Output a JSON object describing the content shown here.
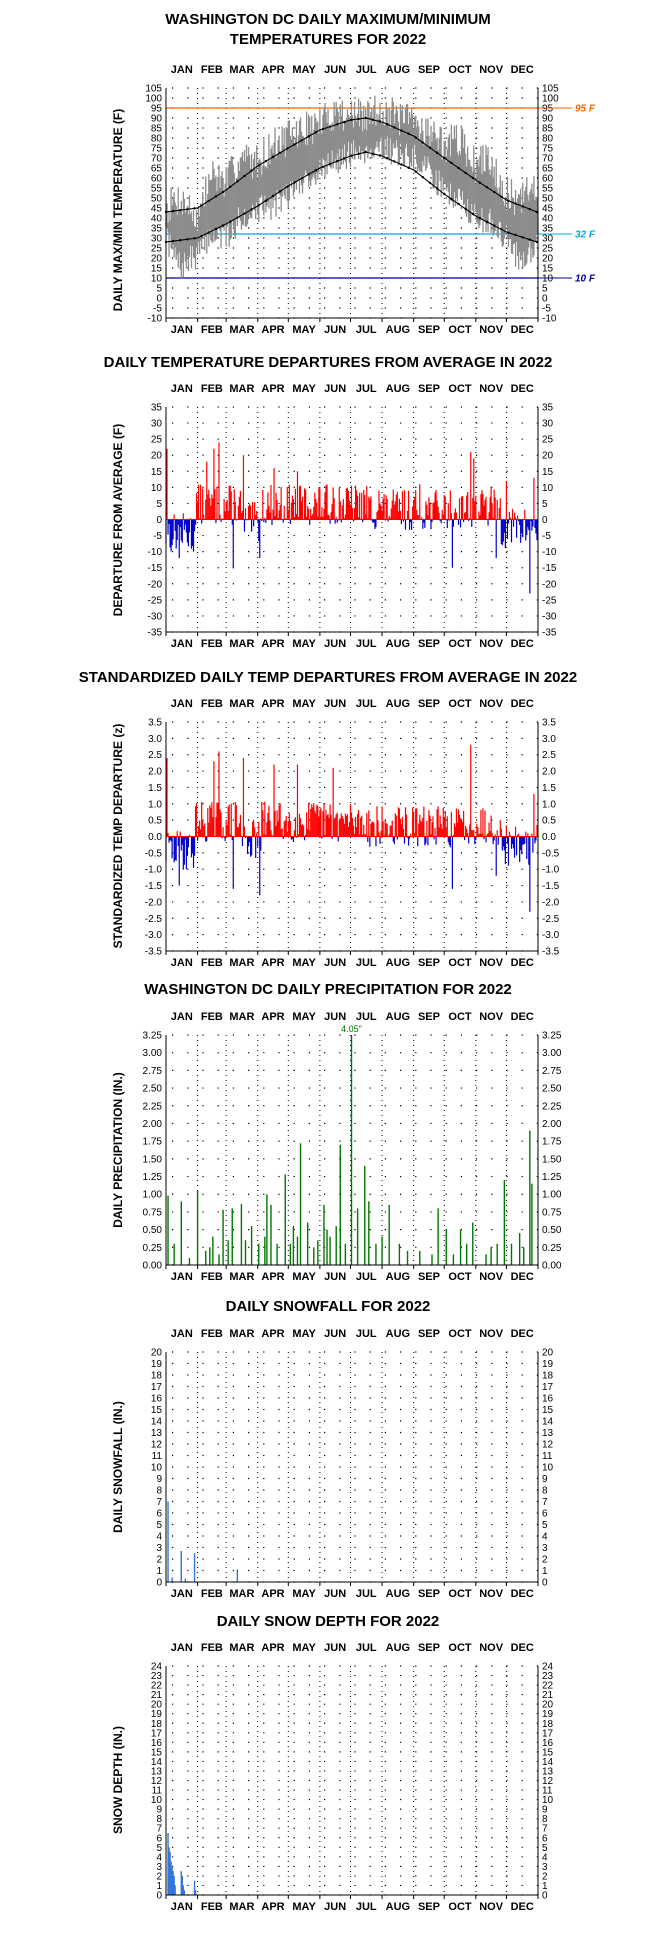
{
  "chart_data": [
    {
      "id": "temp",
      "type": "line",
      "title": [
        "WASHINGTON DC DAILY MAXIMUM/MINIMUM",
        "TEMPERATURES FOR 2022"
      ],
      "ylabel": "DAILY MAX/MIN TEMPERATURE (F)",
      "months": [
        "JAN",
        "FEB",
        "MAR",
        "APR",
        "MAY",
        "JUN",
        "JUL",
        "AUG",
        "SEP",
        "OCT",
        "NOV",
        "DEC"
      ],
      "ylim": [
        -10,
        105
      ],
      "ytick_step": 5,
      "grid": "dotted",
      "reference_lines": [
        {
          "label": "95 F",
          "value": 95,
          "color": "#ff6600"
        },
        {
          "label": "32 F",
          "value": 32,
          "color": "#00aadd"
        },
        {
          "label": "10 F",
          "value": 10,
          "color": "#000099"
        }
      ],
      "series": [
        {
          "label": "",
          "kind": "daily_max",
          "color": "#808080",
          "x": [
            1,
            15,
            32,
            46,
            60,
            74,
            91,
            105,
            121,
            135,
            152,
            166,
            182,
            196,
            213,
            227,
            244,
            258,
            274,
            288,
            305,
            319,
            335,
            349,
            365
          ],
          "y": [
            45,
            50,
            40,
            62,
            58,
            70,
            68,
            76,
            80,
            84,
            87,
            93,
            92,
            90,
            95,
            90,
            88,
            84,
            76,
            80,
            66,
            70,
            52,
            48,
            58
          ]
        },
        {
          "label": "",
          "kind": "daily_min",
          "color": "#808080",
          "x": [
            1,
            15,
            32,
            46,
            60,
            74,
            91,
            105,
            121,
            135,
            152,
            166,
            182,
            196,
            213,
            227,
            244,
            258,
            274,
            288,
            305,
            319,
            335,
            349,
            365
          ],
          "y": [
            30,
            15,
            22,
            32,
            30,
            40,
            44,
            46,
            52,
            58,
            64,
            68,
            72,
            74,
            76,
            72,
            70,
            64,
            54,
            50,
            40,
            38,
            30,
            18,
            28
          ]
        },
        {
          "label": "",
          "kind": "normal_max",
          "color": "#000000",
          "x": [
            1,
            32,
            60,
            91,
            121,
            152,
            182,
            197,
            213,
            244,
            274,
            305,
            335,
            365
          ],
          "y": [
            43,
            45,
            54,
            66,
            75,
            84,
            89,
            90,
            88,
            81,
            70,
            59,
            49,
            43
          ]
        },
        {
          "label": "",
          "kind": "normal_min",
          "color": "#000000",
          "x": [
            1,
            32,
            60,
            91,
            121,
            152,
            182,
            197,
            213,
            244,
            274,
            305,
            335,
            365
          ],
          "y": [
            28,
            30,
            37,
            46,
            56,
            65,
            71,
            73,
            71,
            64,
            52,
            41,
            33,
            28
          ]
        }
      ]
    },
    {
      "id": "dep",
      "type": "bar",
      "title": [
        "DAILY TEMPERATURE DEPARTURES FROM AVERAGE IN 2022"
      ],
      "ylabel": "DEPARTURE FROM AVERAGE (F)",
      "months": [
        "JAN",
        "FEB",
        "MAR",
        "APR",
        "MAY",
        "JUN",
        "JUL",
        "AUG",
        "SEP",
        "OCT",
        "NOV",
        "DEC"
      ],
      "ylim": [
        -35,
        35
      ],
      "ytick_step": 5,
      "grid": "dotted",
      "colors": {
        "positive": "#ff0000",
        "negative": "#0000cc"
      },
      "highlights": [
        {
          "day": 2,
          "value": 22
        },
        {
          "day": 7,
          "value": -8
        },
        {
          "day": 14,
          "value": -12
        },
        {
          "day": 28,
          "value": -10
        },
        {
          "day": 41,
          "value": 18
        },
        {
          "day": 48,
          "value": 22
        },
        {
          "day": 53,
          "value": 24
        },
        {
          "day": 67,
          "value": -15
        },
        {
          "day": 77,
          "value": 20
        },
        {
          "day": 93,
          "value": -12
        },
        {
          "day": 107,
          "value": 16
        },
        {
          "day": 130,
          "value": 15
        },
        {
          "day": 165,
          "value": 10
        },
        {
          "day": 210,
          "value": 9
        },
        {
          "day": 250,
          "value": 11
        },
        {
          "day": 282,
          "value": -15
        },
        {
          "day": 300,
          "value": 21
        },
        {
          "day": 303,
          "value": 19
        },
        {
          "day": 325,
          "value": -12
        },
        {
          "day": 335,
          "value": 12
        },
        {
          "day": 358,
          "value": -23
        },
        {
          "day": 362,
          "value": 13
        }
      ]
    },
    {
      "id": "std",
      "type": "bar",
      "title": [
        "STANDARDIZED DAILY TEMP DEPARTURES FROM AVERAGE IN 2022"
      ],
      "ylabel": "STANDARDIZED TEMP DEPARTURE (z)",
      "months": [
        "JAN",
        "FEB",
        "MAR",
        "APR",
        "MAY",
        "JUN",
        "JUL",
        "AUG",
        "SEP",
        "OCT",
        "NOV",
        "DEC"
      ],
      "ylim": [
        -3.5,
        3.5
      ],
      "ytick_step": 0.5,
      "ytick_decimals": 1,
      "grid": "dotted",
      "colors": {
        "positive": "#ff0000",
        "negative": "#0000cc"
      },
      "highlights": [
        {
          "day": 2,
          "value": 2.4
        },
        {
          "day": 14,
          "value": -1.5
        },
        {
          "day": 48,
          "value": 2.3
        },
        {
          "day": 53,
          "value": 2.6
        },
        {
          "day": 67,
          "value": -1.6
        },
        {
          "day": 77,
          "value": 2.4
        },
        {
          "day": 93,
          "value": -1.8
        },
        {
          "day": 107,
          "value": 2.2
        },
        {
          "day": 130,
          "value": 2.2
        },
        {
          "day": 165,
          "value": 2.1
        },
        {
          "day": 282,
          "value": -1.6
        },
        {
          "day": 300,
          "value": 2.8
        },
        {
          "day": 325,
          "value": -1.2
        },
        {
          "day": 358,
          "value": -2.3
        },
        {
          "day": 362,
          "value": 1.3
        }
      ]
    },
    {
      "id": "precip",
      "type": "bar",
      "title": [
        "WASHINGTON DC DAILY PRECIPITATION FOR 2022"
      ],
      "ylabel": "DAILY PRECIPITATION (IN.)",
      "months": [
        "JAN",
        "FEB",
        "MAR",
        "APR",
        "MAY",
        "JUN",
        "JUL",
        "AUG",
        "SEP",
        "OCT",
        "NOV",
        "DEC"
      ],
      "ylim": [
        0,
        3.25
      ],
      "ytick_step": 0.25,
      "ytick_decimals": 2,
      "grid": "dotted",
      "color": "#007700",
      "max_label": {
        "day": 183,
        "value": 4.05,
        "text": "4.05\""
      },
      "days": [
        3,
        9,
        16,
        24,
        32,
        40,
        44,
        47,
        53,
        57,
        62,
        66,
        75,
        79,
        85,
        92,
        98,
        100,
        104,
        110,
        118,
        123,
        126,
        130,
        133,
        140,
        146,
        150,
        156,
        159,
        162,
        168,
        172,
        177,
        183,
        189,
        196,
        200,
        207,
        213,
        220,
        230,
        238,
        250,
        262,
        268,
        276,
        283,
        290,
        296,
        302,
        315,
        320,
        326,
        333,
        340,
        348,
        352,
        358,
        360
      ],
      "values": [
        0.98,
        0.3,
        0.9,
        0.1,
        1.05,
        0.2,
        0.25,
        0.4,
        0.15,
        0.78,
        0.35,
        0.8,
        0.86,
        0.35,
        0.55,
        0.3,
        0.4,
        1.0,
        0.85,
        0.3,
        1.28,
        0.3,
        0.55,
        0.4,
        1.72,
        0.6,
        0.25,
        0.35,
        0.85,
        0.5,
        0.4,
        0.55,
        1.7,
        0.3,
        3.25,
        0.8,
        1.4,
        0.9,
        0.3,
        0.4,
        0.85,
        0.3,
        0.2,
        0.2,
        0.15,
        0.8,
        0.5,
        0.15,
        0.5,
        0.3,
        0.6,
        0.15,
        0.25,
        0.3,
        1.2,
        0.3,
        0.45,
        0.25,
        1.9,
        1.15
      ]
    },
    {
      "id": "snow",
      "type": "bar",
      "title": [
        "DAILY SNOWFALL FOR 2022"
      ],
      "ylabel": "DAILY SNOWFALL (IN.)",
      "months": [
        "JAN",
        "FEB",
        "MAR",
        "APR",
        "MAY",
        "JUN",
        "JUL",
        "AUG",
        "SEP",
        "OCT",
        "NOV",
        "DEC"
      ],
      "ylim": [
        0,
        20
      ],
      "ytick_step": 1,
      "grid": "dotted",
      "color": "#3377dd",
      "days": [
        3,
        7,
        16,
        20,
        29,
        71
      ],
      "values": [
        7.0,
        0.4,
        2.7,
        0.3,
        2.5,
        1.1
      ]
    },
    {
      "id": "depth",
      "type": "bar",
      "title": [
        "DAILY SNOW DEPTH FOR 2022"
      ],
      "ylabel": "SNOW DEPTH (IN.)",
      "months": [
        "JAN",
        "FEB",
        "MAR",
        "APR",
        "MAY",
        "JUN",
        "JUL",
        "AUG",
        "SEP",
        "OCT",
        "NOV",
        "DEC"
      ],
      "ylim": [
        0,
        24
      ],
      "ytick_step": 1,
      "grid": "dotted",
      "color": "#3377dd",
      "days": [
        3,
        4,
        5,
        6,
        7,
        8,
        9,
        10,
        16,
        17,
        18,
        19,
        29,
        30
      ],
      "values": [
        6.5,
        5.0,
        4.5,
        3.5,
        3.0,
        2.5,
        2.0,
        1.0,
        2.5,
        2.0,
        1.0,
        0.5,
        1.5,
        0.5
      ]
    }
  ]
}
